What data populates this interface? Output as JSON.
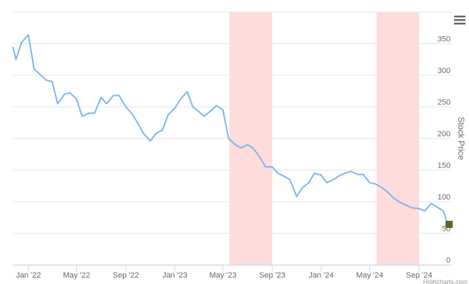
{
  "chart_data": {
    "type": "line",
    "y_axis_title": "Stock Price",
    "credits": "Highcharts.com",
    "series": [
      {
        "name": "Stock Price",
        "color": "#7cb5ec",
        "marker_color": "#4b6e21",
        "x": [
          "2021-11-23",
          "2021-12-01",
          "2021-12-15",
          "2022-01-01",
          "2022-01-15",
          "2022-02-01",
          "2022-02-15",
          "2022-03-01",
          "2022-03-15",
          "2022-04-01",
          "2022-04-15",
          "2022-05-01",
          "2022-05-15",
          "2022-06-01",
          "2022-06-15",
          "2022-07-01",
          "2022-07-15",
          "2022-08-01",
          "2022-08-15",
          "2022-09-01",
          "2022-09-15",
          "2022-10-01",
          "2022-10-15",
          "2022-11-01",
          "2022-11-15",
          "2022-12-01",
          "2022-12-15",
          "2023-01-01",
          "2023-01-15",
          "2023-02-01",
          "2023-02-15",
          "2023-03-01",
          "2023-03-15",
          "2023-04-01",
          "2023-04-15",
          "2023-05-01",
          "2023-05-15",
          "2023-06-01",
          "2023-06-15",
          "2023-07-01",
          "2023-07-15",
          "2023-08-01",
          "2023-08-15",
          "2023-09-01",
          "2023-09-15",
          "2023-10-01",
          "2023-10-15",
          "2023-11-01",
          "2023-11-15",
          "2023-12-01",
          "2023-12-15",
          "2024-01-01",
          "2024-01-15",
          "2024-02-01",
          "2024-02-15",
          "2024-03-01",
          "2024-03-15",
          "2024-04-01",
          "2024-04-15",
          "2024-05-01",
          "2024-05-15",
          "2024-06-01",
          "2024-06-15",
          "2024-07-01",
          "2024-07-15",
          "2024-08-01",
          "2024-08-15",
          "2024-09-01",
          "2024-09-15",
          "2024-10-01",
          "2024-10-15",
          "2024-11-01",
          "2024-11-10",
          "2024-11-15"
        ],
        "values": [
          345,
          325,
          352,
          364,
          310,
          300,
          292,
          290,
          255,
          270,
          272,
          262,
          235,
          240,
          240,
          265,
          255,
          268,
          268,
          250,
          240,
          224,
          208,
          196,
          208,
          213,
          237,
          248,
          262,
          274,
          250,
          243,
          235,
          244,
          252,
          245,
          200,
          190,
          185,
          190,
          185,
          170,
          155,
          155,
          145,
          140,
          135,
          108,
          122,
          130,
          145,
          142,
          130,
          135,
          141,
          145,
          148,
          143,
          143,
          130,
          128,
          122,
          115,
          105,
          99,
          94,
          90,
          89,
          85,
          97,
          92,
          85,
          67,
          64
        ]
      }
    ],
    "plot_bands": [
      {
        "from": "2023-05-17",
        "to": "2023-09-01",
        "color": "#ffdcdc"
      },
      {
        "from": "2024-05-18",
        "to": "2024-09-01",
        "color": "#ffdcdc"
      }
    ],
    "xlim": [
      "2021-11-23",
      "2024-11-22"
    ],
    "xticks": [
      {
        "value": "2022-01-01",
        "label": "Jan '22"
      },
      {
        "value": "2022-05-01",
        "label": "May '22"
      },
      {
        "value": "2022-09-01",
        "label": "Sep '22"
      },
      {
        "value": "2023-01-01",
        "label": "Jan '23"
      },
      {
        "value": "2023-05-01",
        "label": "May '23"
      },
      {
        "value": "2023-09-01",
        "label": "Sep '23"
      },
      {
        "value": "2024-01-01",
        "label": "Jan '24"
      },
      {
        "value": "2024-05-01",
        "label": "May '24"
      },
      {
        "value": "2024-09-01",
        "label": "Sep '24"
      }
    ],
    "ylim": [
      0,
      400
    ],
    "yticks": [
      0,
      50,
      100,
      150,
      200,
      250,
      300,
      350
    ],
    "grid": true
  }
}
